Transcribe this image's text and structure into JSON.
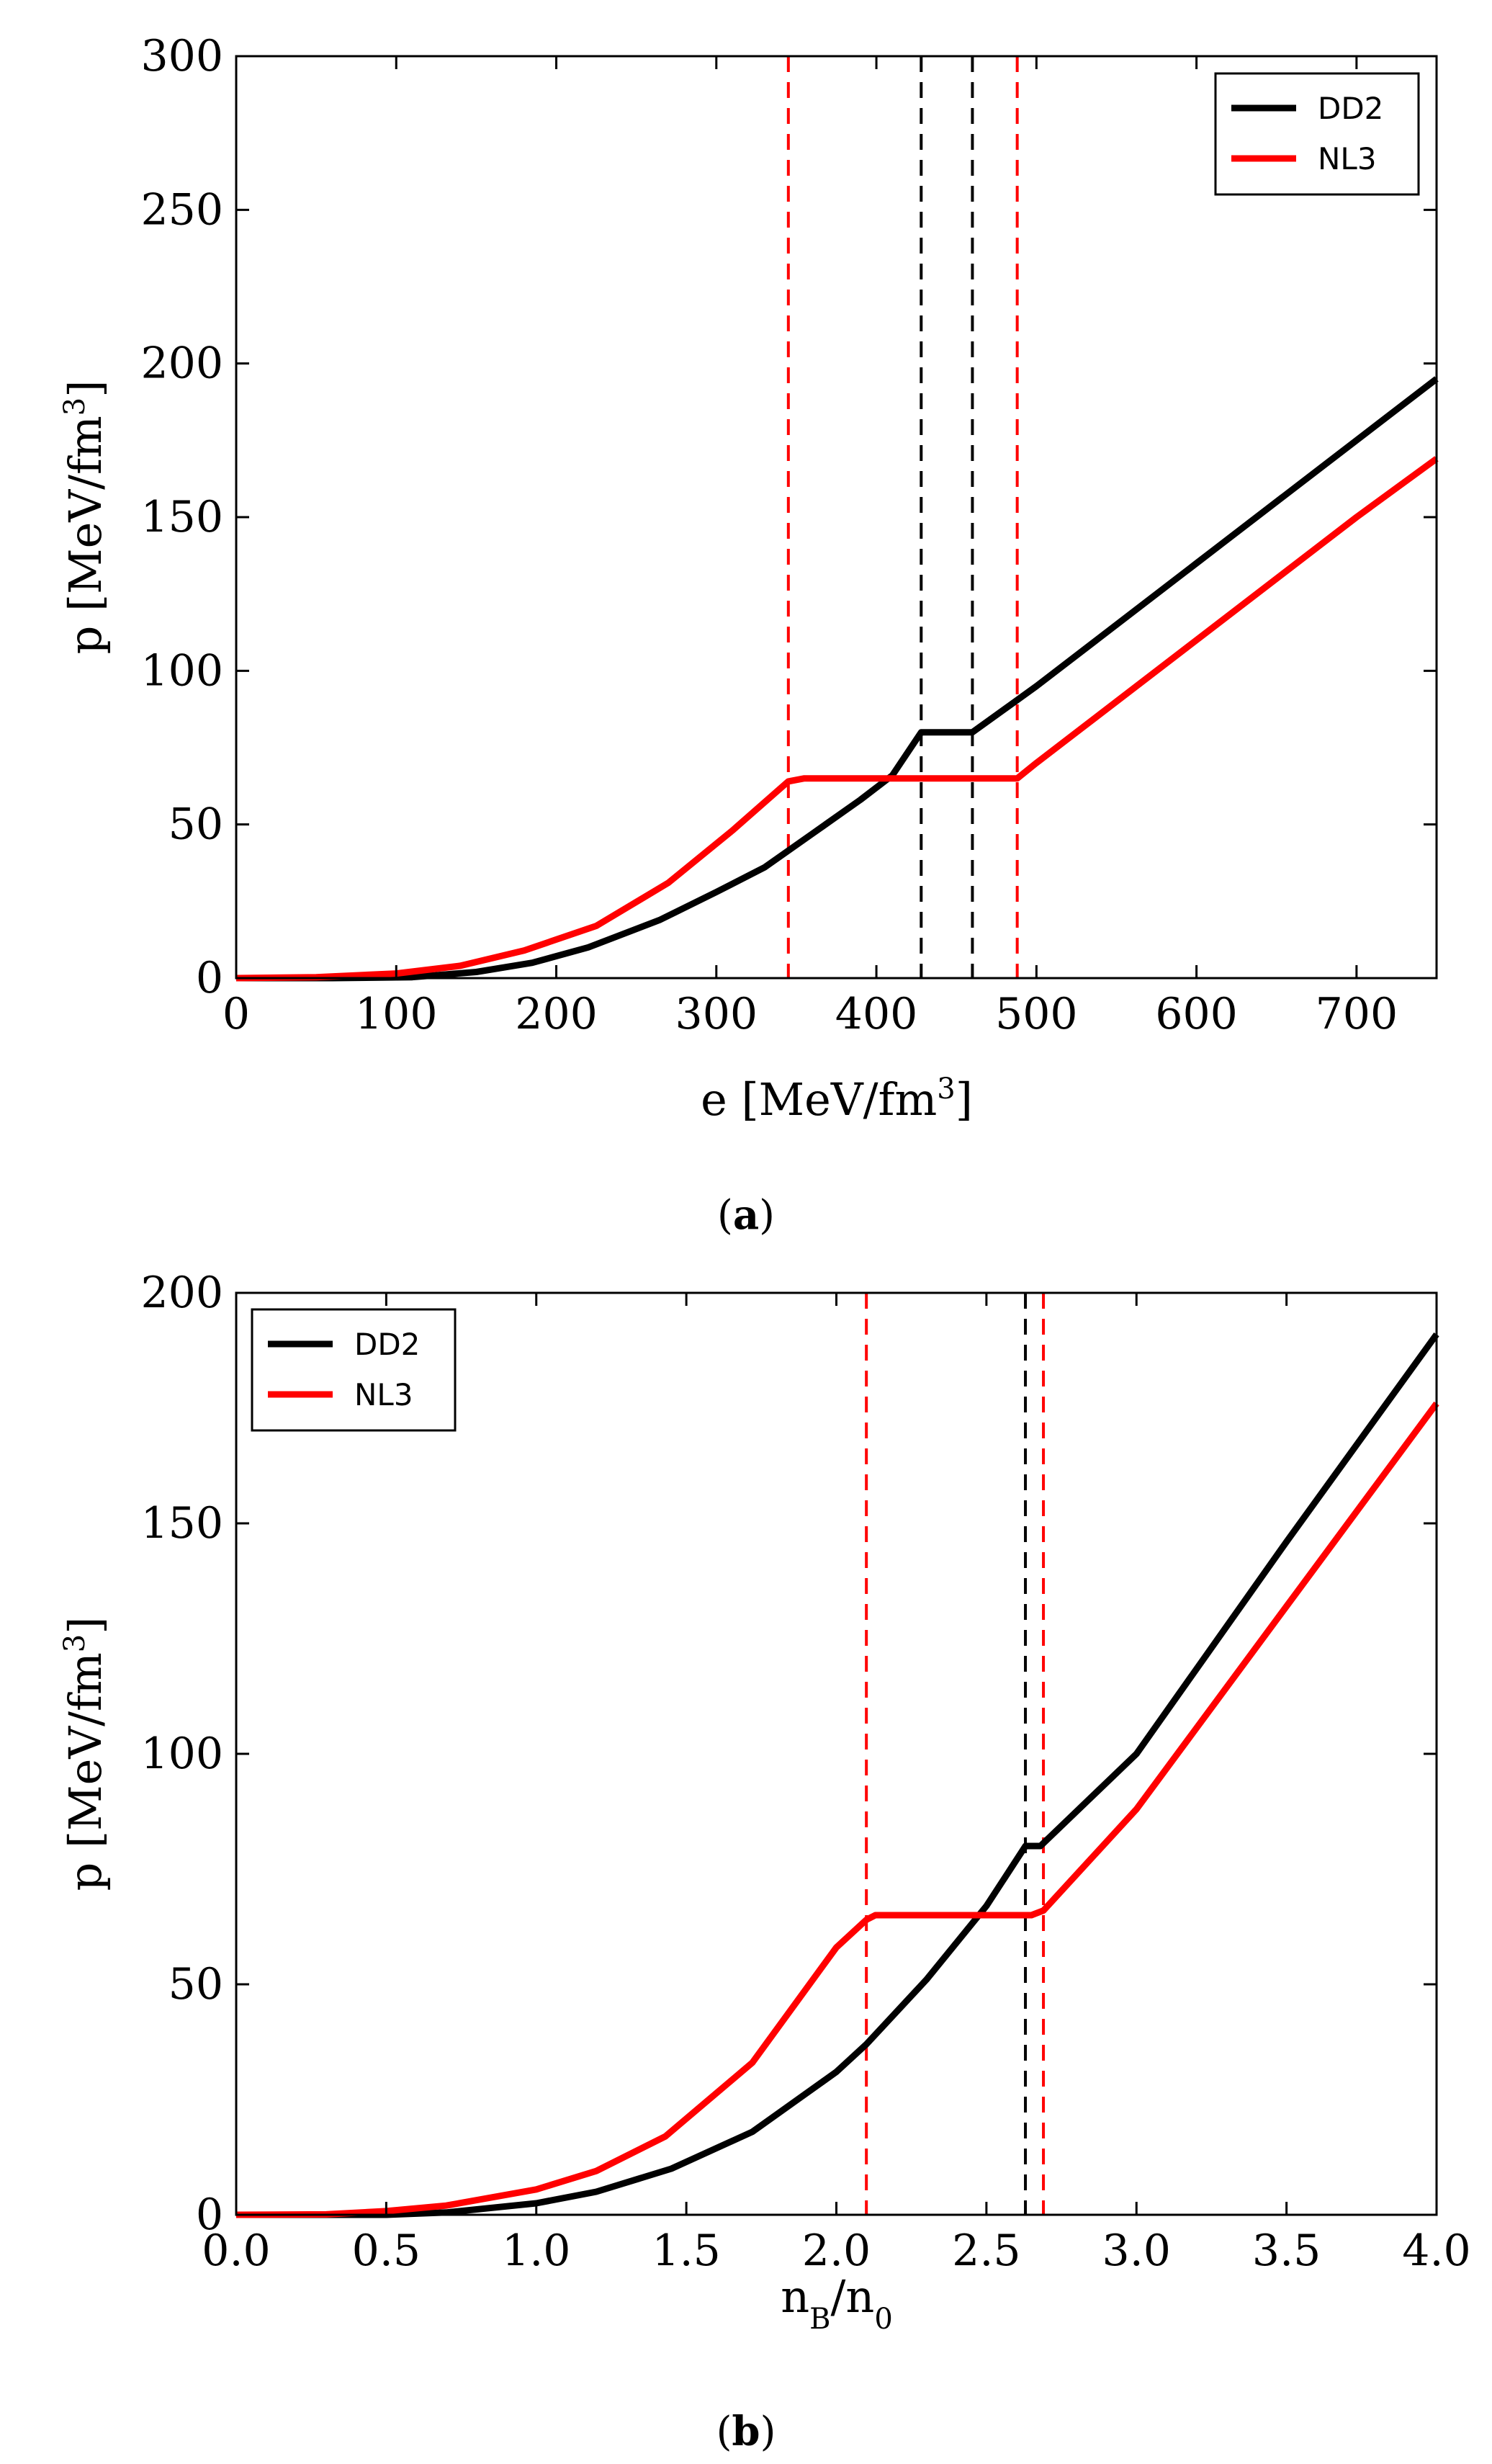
{
  "chart_data": [
    {
      "type": "line",
      "panel": "a",
      "caption_letter": "a",
      "xlabel": "e [MeV/fm",
      "xlabel_sup": "3",
      "xlabel_tail": "]",
      "ylabel": "p [MeV/fm",
      "ylabel_sup": "3",
      "ylabel_tail": "]",
      "xlim": [
        0,
        750
      ],
      "ylim": [
        0,
        300
      ],
      "xticks": [
        0,
        100,
        200,
        300,
        400,
        500,
        600,
        700
      ],
      "yticks": [
        0,
        50,
        100,
        150,
        200,
        250,
        300
      ],
      "legend_position": "top-right",
      "series": [
        {
          "name": "DD2",
          "color": "#000000",
          "x": [
            0,
            60,
            110,
            150,
            185,
            220,
            265,
            300,
            330,
            360,
            390,
            410,
            428,
            460,
            500,
            600,
            700,
            750
          ],
          "y": [
            0,
            0,
            0.3,
            2,
            5,
            10,
            19,
            28,
            36,
            47,
            58,
            66,
            80,
            80,
            95,
            135,
            175,
            195
          ]
        },
        {
          "name": "NL3",
          "color": "#ff0000",
          "x": [
            0,
            50,
            100,
            140,
            180,
            225,
            270,
            310,
            345,
            355,
            400,
            450,
            488,
            500,
            600,
            700,
            750
          ],
          "y": [
            0,
            0.3,
            1.5,
            4,
            9,
            17,
            31,
            48,
            64,
            65,
            65,
            65,
            65,
            70,
            110,
            150,
            169
          ]
        }
      ],
      "vlines": [
        {
          "x": 345,
          "color": "#ff0000"
        },
        {
          "x": 428,
          "color": "#000000"
        },
        {
          "x": 460,
          "color": "#000000"
        },
        {
          "x": 488,
          "color": "#ff0000"
        }
      ]
    },
    {
      "type": "line",
      "panel": "b",
      "caption_letter": "b",
      "xlabel": "n",
      "xlabel_sub1": "B",
      "xlabel_mid": "/n",
      "xlabel_sub2": "0",
      "ylabel": "p [MeV/fm",
      "ylabel_sup": "3",
      "ylabel_tail": "]",
      "xlim": [
        0.0,
        4.0
      ],
      "ylim": [
        0,
        200
      ],
      "xticks": [
        "0.0",
        "0.5",
        "1.0",
        "1.5",
        "2.0",
        "2.5",
        "3.0",
        "3.5",
        "4.0"
      ],
      "yticks": [
        0,
        50,
        100,
        150,
        200
      ],
      "legend_position": "top-left",
      "series": [
        {
          "name": "DD2",
          "color": "#000000",
          "x": [
            0,
            0.5,
            0.7,
            1.0,
            1.2,
            1.45,
            1.72,
            2.0,
            2.1,
            2.3,
            2.5,
            2.63,
            2.68,
            3.0,
            3.5,
            4.0
          ],
          "y": [
            0,
            0,
            0.5,
            2.5,
            5,
            10,
            18,
            31,
            37,
            51,
            67,
            80,
            80,
            100,
            146,
            191
          ]
        },
        {
          "name": "NL3",
          "color": "#ff0000",
          "x": [
            0,
            0.3,
            0.5,
            0.7,
            1.0,
            1.2,
            1.43,
            1.72,
            2.0,
            2.1,
            2.13,
            2.3,
            2.5,
            2.65,
            2.69,
            3.0,
            3.5,
            4.0
          ],
          "y": [
            0,
            0.1,
            0.8,
            2,
            5.5,
            9.5,
            17,
            33,
            58,
            64,
            65,
            65,
            65,
            65,
            66,
            88,
            132,
            176
          ]
        }
      ],
      "vlines": [
        {
          "x": 2.1,
          "color": "#ff0000"
        },
        {
          "x": 2.63,
          "color": "#000000"
        },
        {
          "x": 2.69,
          "color": "#ff0000"
        }
      ]
    }
  ]
}
